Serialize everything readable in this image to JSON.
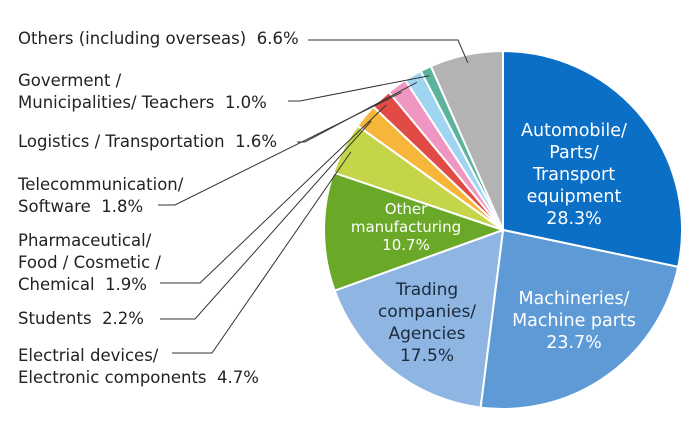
{
  "chart_data": {
    "type": "pie",
    "slices": [
      {
        "key": "automobile",
        "lines": [
          "Automobile/",
          "Parts/",
          "Transport",
          "equipment"
        ],
        "value_text": "28.3%",
        "value": 28.3,
        "color": "#0b6fc6"
      },
      {
        "key": "machinery",
        "lines": [
          "Machineries/",
          "Machine parts"
        ],
        "value_text": "23.7%",
        "value": 23.7,
        "color": "#5e9bd6"
      },
      {
        "key": "trading",
        "lines": [
          "Trading",
          "companies/",
          "Agencies"
        ],
        "value_text": "17.5%",
        "value": 17.5,
        "color": "#8fb6e3"
      },
      {
        "key": "other_mfg",
        "lines": [
          "Other",
          "manufacturing"
        ],
        "value_text": "10.7%",
        "value": 10.7,
        "color": "#6aa827"
      },
      {
        "key": "electrical",
        "lines": [
          "Electrial devices/",
          "Electronic components"
        ],
        "value_text": "4.7%",
        "value": 4.7,
        "color": "#c5d549"
      },
      {
        "key": "students",
        "lines": [
          "Students"
        ],
        "value_text": "2.2%",
        "value": 2.2,
        "color": "#f5b63a"
      },
      {
        "key": "pharma",
        "lines": [
          "Pharmaceutical/",
          "Food  / Cosmetic  /",
          "Chemical"
        ],
        "value_text": "1.9%",
        "value": 1.9,
        "color": "#e14a45"
      },
      {
        "key": "telecom",
        "lines": [
          "Telecommunication/",
          "Software"
        ],
        "value_text": "1.8%",
        "value": 1.8,
        "color": "#ef97c2"
      },
      {
        "key": "logistics",
        "lines": [
          "Logistics / Transportation"
        ],
        "value_text": "1.6%",
        "value": 1.6,
        "color": "#9fd5f0"
      },
      {
        "key": "government",
        "lines": [
          "Goverment /",
          "Municipalities/ Teachers"
        ],
        "value_text": "1.0%",
        "value": 1.0,
        "color": "#5bb39b"
      },
      {
        "key": "others",
        "lines": [
          "Others (including overseas)"
        ],
        "value_text": "6.6%",
        "value": 6.6,
        "color": "#b3b3b3"
      }
    ]
  }
}
